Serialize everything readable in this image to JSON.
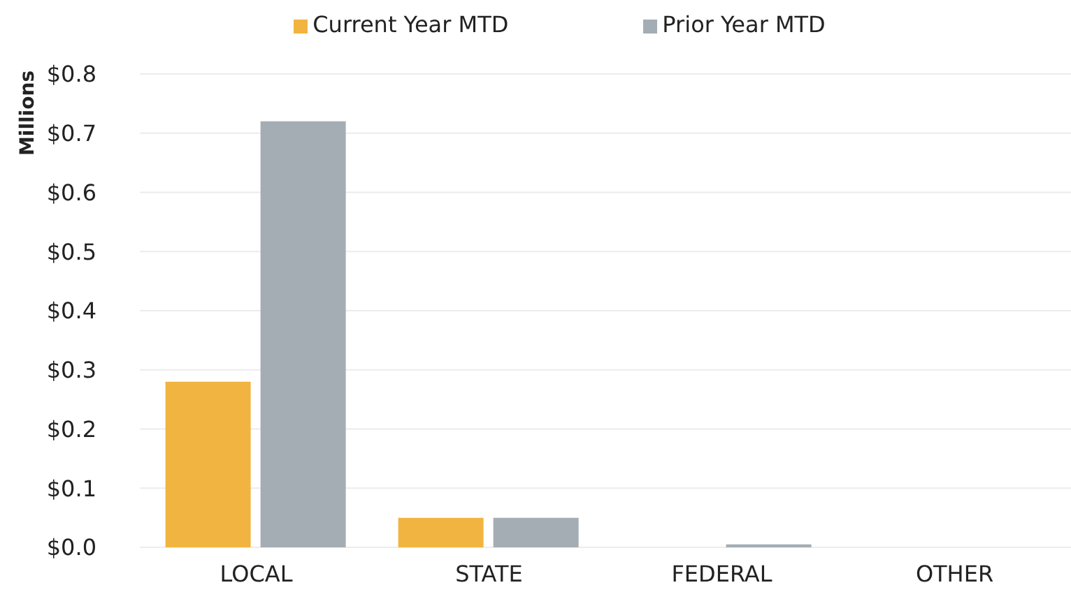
{
  "chart_data": {
    "type": "bar",
    "categories": [
      "LOCAL",
      "STATE",
      "FEDERAL",
      "OTHER"
    ],
    "series": [
      {
        "name": "Current Year MTD",
        "color": "#f2b440",
        "values": [
          0.28,
          0.05,
          0,
          0
        ]
      },
      {
        "name": "Prior Year MTD",
        "color": "#a5adb4",
        "values": [
          0.72,
          0.05,
          0.005,
          0
        ]
      }
    ],
    "ylabel": "Millions",
    "ylim": [
      0,
      0.8
    ],
    "yticks": [
      {
        "value": 0,
        "label": "$0.0"
      },
      {
        "value": 0.1,
        "label": "$0.1"
      },
      {
        "value": 0.2,
        "label": "$0.2"
      },
      {
        "value": 0.3,
        "label": "$0.3"
      },
      {
        "value": 0.4,
        "label": "$0.4"
      },
      {
        "value": 0.5,
        "label": "$0.5"
      },
      {
        "value": 0.6,
        "label": "$0.6"
      },
      {
        "value": 0.7,
        "label": "$0.7"
      },
      {
        "value": 0.8,
        "label": "$0.8"
      }
    ],
    "grid": "y",
    "legend": "top"
  }
}
